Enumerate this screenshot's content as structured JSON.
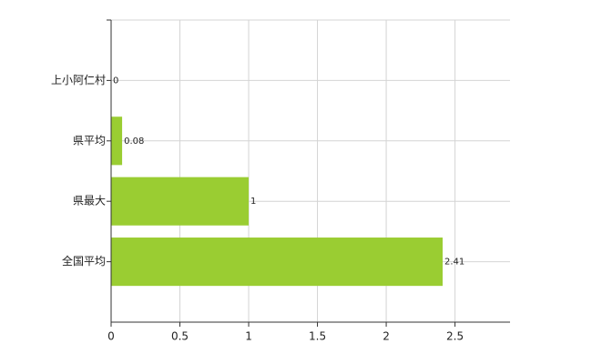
{
  "chart_data": {
    "type": "bar",
    "orientation": "horizontal",
    "categories": [
      "上小阿仁村",
      "県平均",
      "県最大",
      "全国平均"
    ],
    "values": [
      0,
      0.08,
      1,
      2.41
    ],
    "color": "#9acd32",
    "xlim": [
      0,
      2.9
    ],
    "xticks": [
      0,
      0.5,
      1,
      1.5,
      2,
      2.5
    ],
    "grid": true
  }
}
